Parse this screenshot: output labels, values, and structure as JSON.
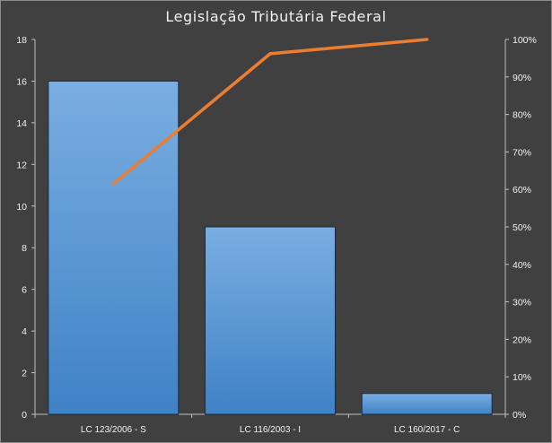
{
  "chart_data": {
    "type": "bar",
    "title": "Legislação Tributária Federal",
    "categories": [
      "LC 123/2006 - S",
      "LC 116/2003 - I",
      "LC 160/2017 - C"
    ],
    "series": [
      {
        "kind": "bar",
        "axis": "left",
        "values": [
          16,
          9,
          1
        ],
        "color": "#5b9bd5"
      },
      {
        "kind": "line",
        "axis": "right",
        "values": [
          61.5,
          96.2,
          100
        ],
        "color": "#ed7d31"
      }
    ],
    "ylim": [
      0,
      18
    ],
    "yticks": [
      "0",
      "2",
      "4",
      "6",
      "8",
      "10",
      "12",
      "14",
      "16",
      "18"
    ],
    "y2lim": [
      0,
      100
    ],
    "y2ticks": [
      "0%",
      "10%",
      "20%",
      "30%",
      "40%",
      "50%",
      "60%",
      "70%",
      "80%",
      "90%",
      "100%"
    ],
    "grid": false,
    "legend": "none",
    "background": "#404040"
  }
}
